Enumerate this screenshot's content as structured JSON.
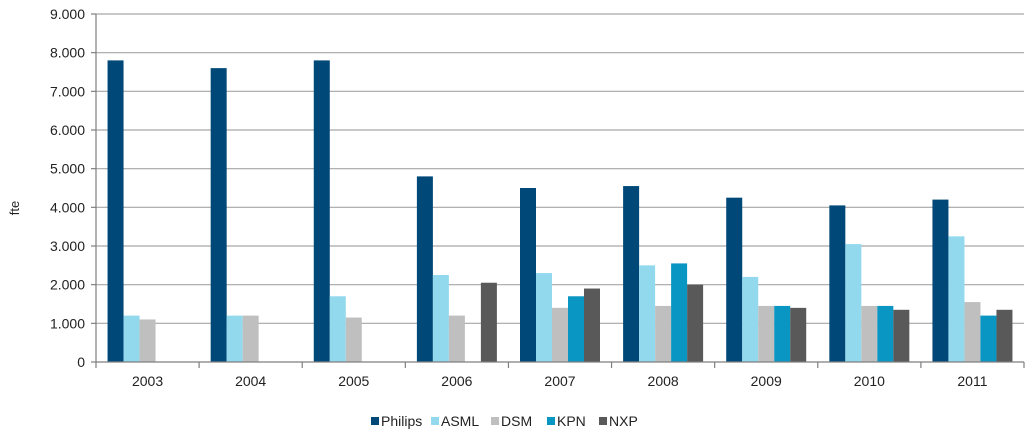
{
  "chart_data": {
    "type": "bar",
    "title": "",
    "xlabel": "",
    "ylabel": "fte",
    "ylim": [
      0,
      9000
    ],
    "yticks": [
      0,
      1000,
      2000,
      3000,
      4000,
      5000,
      6000,
      7000,
      8000,
      9000
    ],
    "ytick_labels": [
      "0",
      "1.000",
      "2.000",
      "3.000",
      "4.000",
      "5.000",
      "6.000",
      "7.000",
      "8.000",
      "9.000"
    ],
    "grid": "horizontal",
    "legend": "bottom",
    "categories": [
      "2003",
      "2004",
      "2005",
      "2006",
      "2007",
      "2008",
      "2009",
      "2010",
      "2011"
    ],
    "series": [
      {
        "name": "Philips",
        "color": "#004877",
        "values": [
          7800,
          7600,
          7800,
          4800,
          4500,
          4550,
          4250,
          4050,
          4200
        ]
      },
      {
        "name": "ASML",
        "color": "#93d9ee",
        "values": [
          1200,
          1200,
          1700,
          2250,
          2300,
          2500,
          2200,
          3050,
          3250
        ]
      },
      {
        "name": "DSM",
        "color": "#bfbfbf",
        "values": [
          1100,
          1200,
          1150,
          1200,
          1400,
          1450,
          1450,
          1450,
          1550
        ]
      },
      {
        "name": "KPN",
        "color": "#0a96c3",
        "values": [
          null,
          null,
          null,
          null,
          1700,
          2550,
          1450,
          1450,
          1200
        ]
      },
      {
        "name": "NXP",
        "color": "#595959",
        "values": [
          null,
          null,
          null,
          2050,
          1900,
          2000,
          1400,
          1350,
          1350
        ]
      }
    ]
  }
}
